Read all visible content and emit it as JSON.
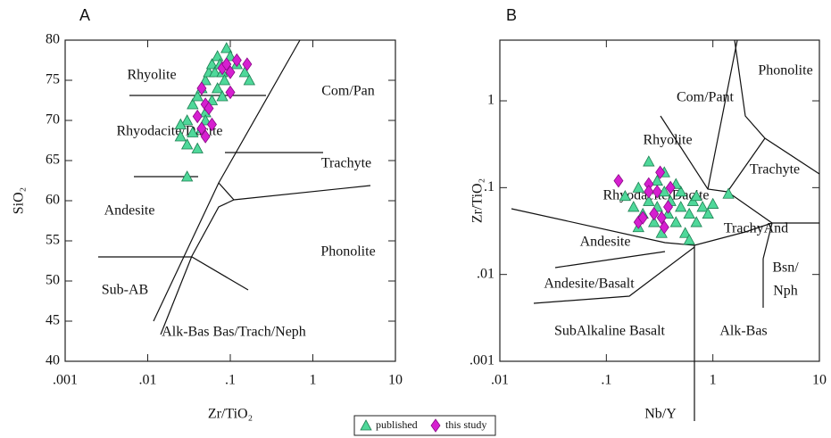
{
  "chart_data": [
    {
      "type": "scatter",
      "title": "A",
      "xlabel": "Zr/TiO₂",
      "ylabel": "SiO₂",
      "xlog": true,
      "xlim": [
        0.001,
        10
      ],
      "ylim": [
        40,
        80
      ],
      "xticks": [
        {
          "value": 0.001,
          "label": ".001"
        },
        {
          "value": 0.01,
          "label": ".01"
        },
        {
          "value": 0.1,
          "label": ".1"
        },
        1,
        10
      ],
      "yticks": [
        40,
        45,
        50,
        55,
        60,
        65,
        70,
        75,
        80
      ],
      "annotations": [
        "Rhyolite",
        "Com/Pan",
        "Rhyodacite/Dacite",
        "Trachyte",
        "Andesite",
        "Phonolite",
        "Sub-AB",
        "Alk-Bas Bas/Trach/Neph"
      ],
      "series": [
        {
          "name": "published",
          "color": "#4fd89a",
          "marker": "triangle",
          "x": [
            0.03,
            0.035,
            0.04,
            0.045,
            0.05,
            0.055,
            0.06,
            0.065,
            0.07,
            0.075,
            0.08,
            0.085,
            0.09,
            0.1,
            0.12,
            0.15,
            0.17,
            0.025,
            0.03,
            0.035,
            0.04,
            0.045,
            0.05,
            0.06,
            0.07,
            0.08,
            0.03,
            0.05,
            0.025
          ],
          "values": [
            70,
            72,
            73,
            74,
            75,
            76,
            77,
            76,
            78,
            77,
            76,
            75,
            79,
            78,
            77,
            76,
            75,
            68,
            67,
            68.5,
            66.5,
            69,
            71,
            72.5,
            74,
            73,
            63,
            70,
            69.5
          ]
        },
        {
          "name": "this study",
          "color": "#d61fd0",
          "marker": "diamond",
          "x": [
            0.045,
            0.05,
            0.045,
            0.055,
            0.04,
            0.06,
            0.08,
            0.09,
            0.1,
            0.12,
            0.1,
            0.05,
            0.16
          ],
          "values": [
            74,
            72,
            69,
            71.5,
            70.5,
            69.5,
            76.5,
            77,
            76,
            77.5,
            73.5,
            68,
            77
          ]
        }
      ]
    },
    {
      "type": "scatter",
      "title": "B",
      "xlabel": "Nb/Y",
      "ylabel": "Zr/TiO₂",
      "xlog": true,
      "ylog": true,
      "xlim": [
        0.01,
        10
      ],
      "ylim": [
        0.001,
        5
      ],
      "xticks": [
        {
          "value": 0.01,
          "label": ".01"
        },
        {
          "value": 0.1,
          "label": ".1"
        },
        1,
        10
      ],
      "yticks": [
        {
          "value": 0.001,
          "label": ".001"
        },
        {
          "value": 0.01,
          "label": ".01"
        },
        {
          "value": 0.1,
          "label": ".1"
        },
        1
      ],
      "annotations": [
        "Phonolite",
        "Com/Pant",
        "Rhyolite",
        "Trachyte",
        "Rhyodacite/Dacite",
        "TrachyAnd",
        "Andesite",
        "Bsn/",
        "Nph",
        "Andesite/Basalt",
        "SubAlkaline Basalt",
        "Alk-Bas"
      ],
      "series": [
        {
          "color": "#4fd89a",
          "marker": "triangle",
          "x": [
            0.15,
            0.18,
            0.2,
            0.22,
            0.25,
            0.25,
            0.28,
            0.3,
            0.3,
            0.33,
            0.35,
            0.38,
            0.4,
            0.45,
            0.5,
            0.5,
            0.55,
            0.6,
            0.65,
            0.7,
            0.8,
            0.9,
            1.0,
            1.4,
            0.6,
            0.2,
            0.7,
            0.35,
            0.45
          ],
          "values": [
            0.08,
            0.06,
            0.1,
            0.05,
            0.2,
            0.07,
            0.04,
            0.12,
            0.06,
            0.03,
            0.09,
            0.05,
            0.07,
            0.04,
            0.06,
            0.09,
            0.03,
            0.05,
            0.07,
            0.04,
            0.06,
            0.05,
            0.065,
            0.085,
            0.025,
            0.035,
            0.08,
            0.15,
            0.11
          ]
        },
        {
          "color": "#d61fd0",
          "marker": "diamond",
          "x": [
            0.13,
            0.2,
            0.22,
            0.25,
            0.28,
            0.3,
            0.32,
            0.35,
            0.38,
            0.4,
            0.33,
            0.25
          ],
          "values": [
            0.12,
            0.04,
            0.045,
            0.11,
            0.05,
            0.09,
            0.15,
            0.035,
            0.06,
            0.1,
            0.045,
            0.09
          ]
        }
      ]
    }
  ]
}
